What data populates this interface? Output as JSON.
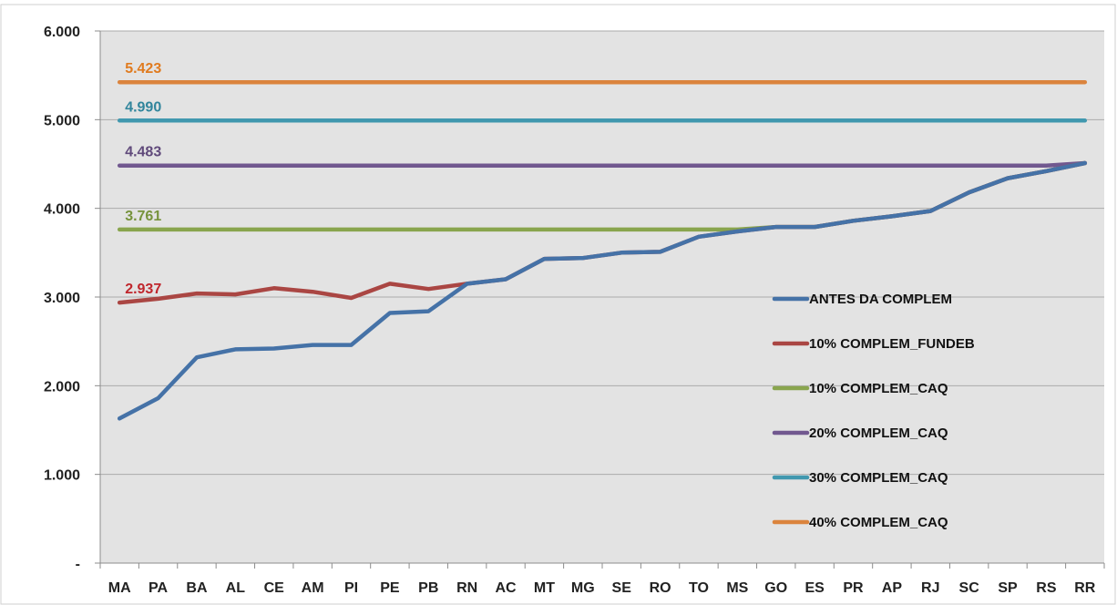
{
  "chart_data": {
    "type": "line",
    "title": "",
    "xlabel": "",
    "ylabel": "",
    "ylim": [
      0,
      6000
    ],
    "yticks": [
      {
        "value": 0,
        "label": "-"
      },
      {
        "value": 1000,
        "label": "1.000"
      },
      {
        "value": 2000,
        "label": "2.000"
      },
      {
        "value": 3000,
        "label": "3.000"
      },
      {
        "value": 4000,
        "label": "4.000"
      },
      {
        "value": 5000,
        "label": "5.000"
      },
      {
        "value": 6000,
        "label": "6.000"
      }
    ],
    "grid": "horizontal",
    "legend_position": "right",
    "categories": [
      "MA",
      "PA",
      "BA",
      "AL",
      "CE",
      "AM",
      "PI",
      "PE",
      "PB",
      "RN",
      "AC",
      "MT",
      "MG",
      "SE",
      "RO",
      "TO",
      "MS",
      "GO",
      "ES",
      "PR",
      "AP",
      "RJ",
      "SC",
      "SP",
      "RS",
      "RR"
    ],
    "series": [
      {
        "name": "ANTES DA COMPLEM",
        "color": "#4572a7",
        "values": [
          1630,
          1860,
          2320,
          2410,
          2420,
          2460,
          2460,
          2820,
          2840,
          3150,
          3200,
          3430,
          3440,
          3500,
          3510,
          3680,
          3740,
          3790,
          3790,
          3860,
          3910,
          3970,
          4180,
          4340,
          4420,
          4510
        ]
      },
      {
        "name": "10% COMPLEM_FUNDEB",
        "color": "#aa4643",
        "values": [
          2937,
          2980,
          3040,
          3030,
          3100,
          3060,
          2990,
          3150,
          3090,
          3150,
          3200,
          3430,
          3440,
          3500,
          3510,
          3680,
          3740,
          3790,
          3790,
          3860,
          3910,
          3970,
          4180,
          4340,
          4420,
          4510
        ]
      },
      {
        "name": "10% COMPLEM_CAQ",
        "color": "#89a54e",
        "values": [
          3761,
          3761,
          3761,
          3761,
          3761,
          3761,
          3761,
          3761,
          3761,
          3761,
          3761,
          3761,
          3761,
          3761,
          3761,
          3761,
          3761,
          3790,
          3790,
          3860,
          3910,
          3970,
          4180,
          4340,
          4420,
          4510
        ]
      },
      {
        "name": "20% COMPLEM_CAQ",
        "color": "#71588f",
        "values": [
          4483,
          4483,
          4483,
          4483,
          4483,
          4483,
          4483,
          4483,
          4483,
          4483,
          4483,
          4483,
          4483,
          4483,
          4483,
          4483,
          4483,
          4483,
          4483,
          4483,
          4483,
          4483,
          4483,
          4483,
          4483,
          4510
        ]
      },
      {
        "name": "30% COMPLEM_CAQ",
        "color": "#4198af",
        "values": [
          4990,
          4990,
          4990,
          4990,
          4990,
          4990,
          4990,
          4990,
          4990,
          4990,
          4990,
          4990,
          4990,
          4990,
          4990,
          4990,
          4990,
          4990,
          4990,
          4990,
          4990,
          4990,
          4990,
          4990,
          4990,
          4990
        ]
      },
      {
        "name": "40% COMPLEM_CAQ",
        "color": "#db843d",
        "values": [
          5423,
          5423,
          5423,
          5423,
          5423,
          5423,
          5423,
          5423,
          5423,
          5423,
          5423,
          5423,
          5423,
          5423,
          5423,
          5423,
          5423,
          5423,
          5423,
          5423,
          5423,
          5423,
          5423,
          5423,
          5423,
          5423
        ]
      }
    ],
    "annotations": [
      {
        "text": "5.423",
        "series": "40% COMPLEM_CAQ",
        "color": "#e07b1f"
      },
      {
        "text": "4.990",
        "series": "30% COMPLEM_CAQ",
        "color": "#31859c"
      },
      {
        "text": "4.483",
        "series": "20% COMPLEM_CAQ",
        "color": "#604a7b"
      },
      {
        "text": "3.761",
        "series": "10% COMPLEM_CAQ",
        "color": "#77933c"
      },
      {
        "text": "2.937",
        "series": "10% COMPLEM_FUNDEB",
        "color": "#c0272d"
      }
    ],
    "legend": [
      {
        "label": "ANTES DA COMPLEM",
        "color": "#4572a7"
      },
      {
        "label": "10% COMPLEM_FUNDEB",
        "color": "#aa4643"
      },
      {
        "label": "10% COMPLEM_CAQ",
        "color": "#89a54e"
      },
      {
        "label": "20% COMPLEM_CAQ",
        "color": "#71588f"
      },
      {
        "label": "30% COMPLEM_CAQ",
        "color": "#4198af"
      },
      {
        "label": "40% COMPLEM_CAQ",
        "color": "#db843d"
      }
    ],
    "colors": {
      "plot_background": "#e3e3e3",
      "gridline": "#ababab",
      "axis": "#8c8c8c"
    }
  }
}
